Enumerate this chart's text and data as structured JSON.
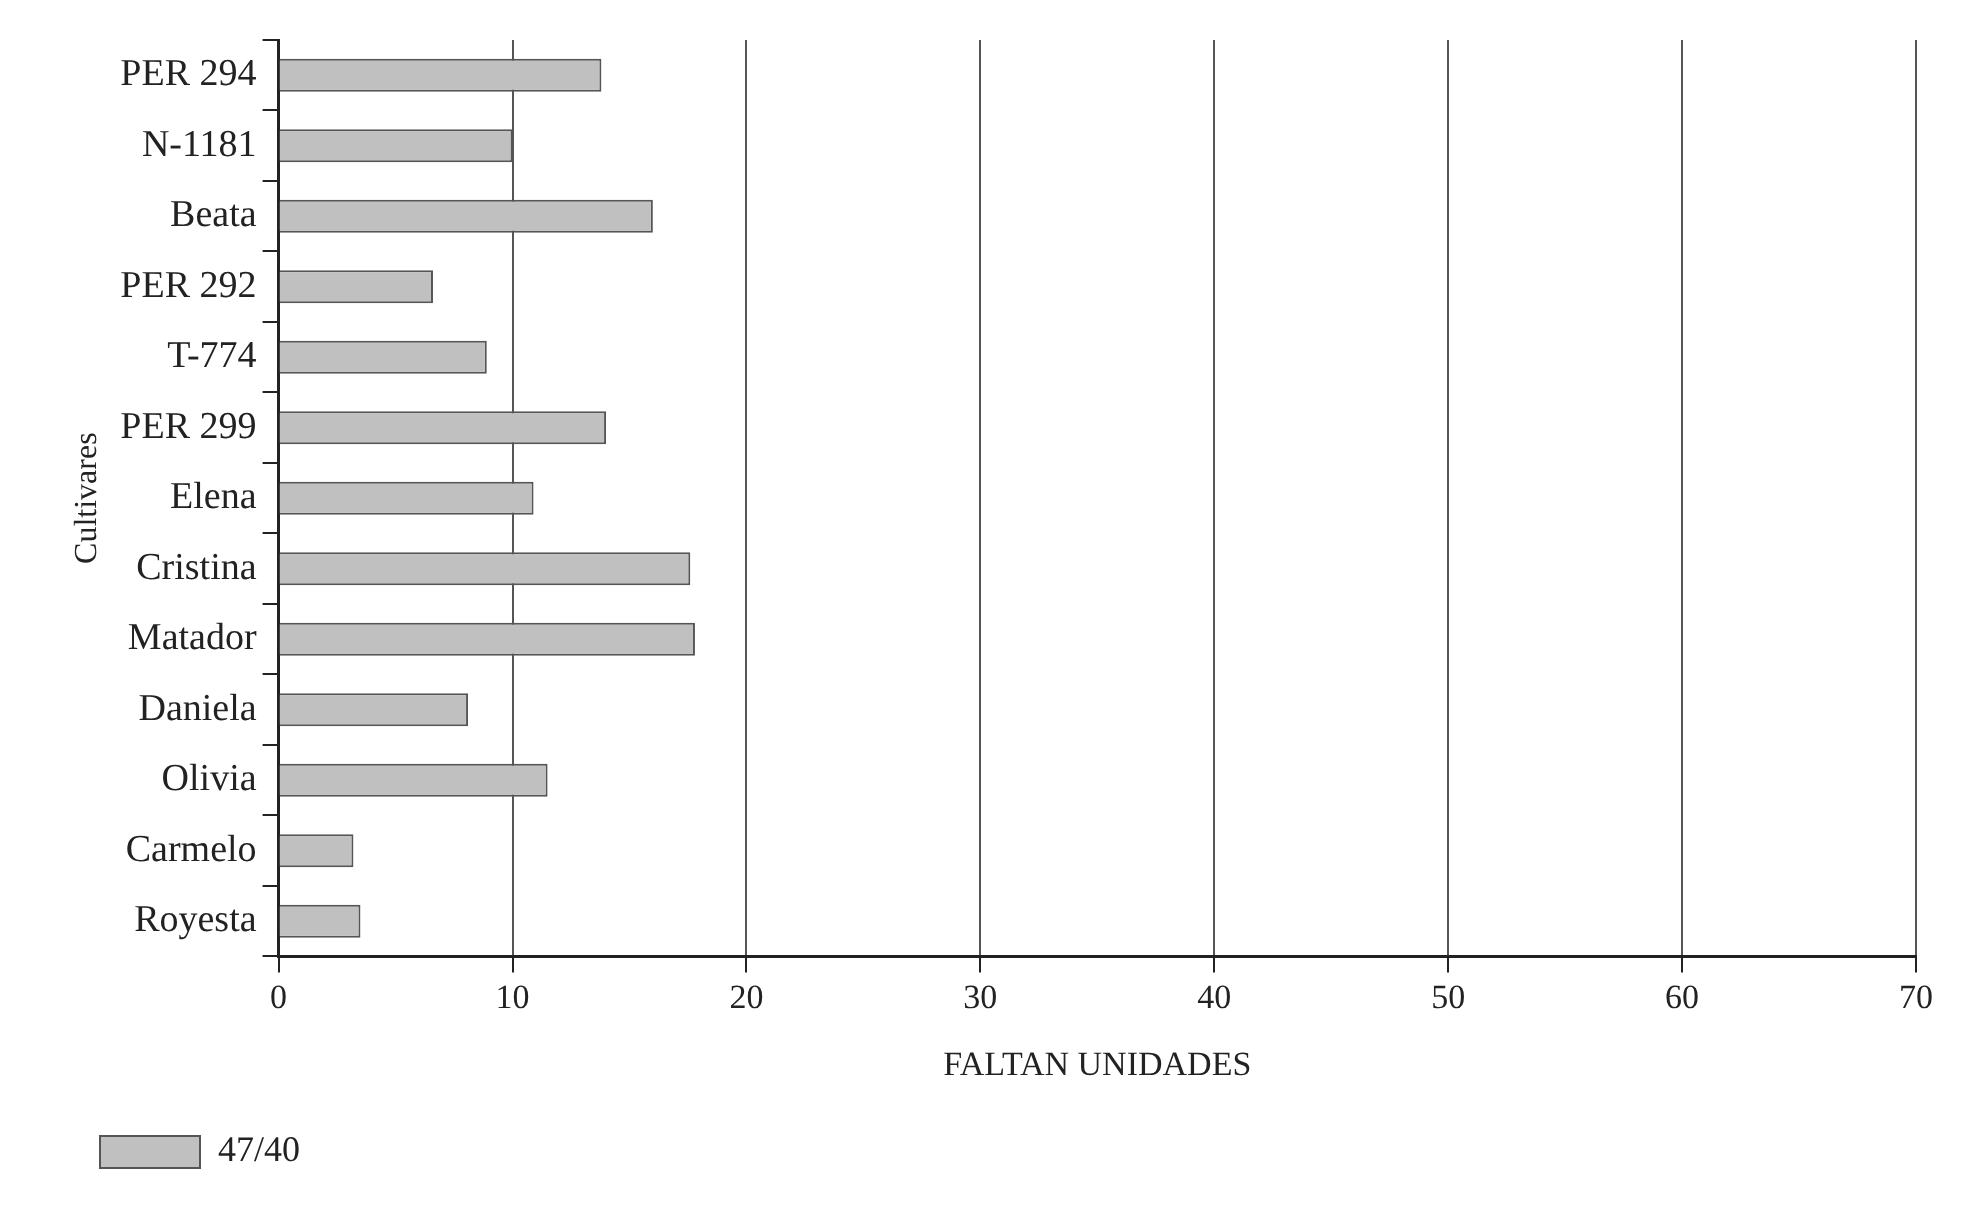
{
  "chart_data": {
    "type": "bar",
    "orientation": "horizontal",
    "xlabel": "FALTAN UNIDADES",
    "ylabel": "Cultivares",
    "categories": [
      "PER 294",
      "N-1181",
      "Beata",
      "PER 292",
      "T-774",
      "PER 299",
      "Elena",
      "Cristina",
      "Matador",
      "Daniela",
      "Olivia",
      "Carmelo",
      "Royesta"
    ],
    "series": [
      {
        "name": "47/40",
        "color": "#c0c0c0",
        "values": [
          13.8,
          10.0,
          16.0,
          6.6,
          8.9,
          14.0,
          10.9,
          17.6,
          17.8,
          8.1,
          11.5,
          3.2,
          3.5
        ]
      }
    ],
    "xlim": [
      0,
      70
    ],
    "xticks": [
      0,
      10,
      20,
      30,
      40,
      50,
      60,
      70
    ],
    "grid": "x",
    "legend": "bottom left"
  }
}
